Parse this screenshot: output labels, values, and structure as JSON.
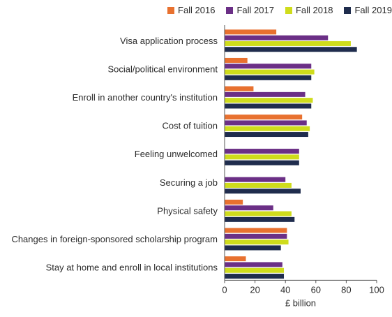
{
  "chart_data": {
    "type": "bar",
    "orientation": "horizontal",
    "categories": [
      "Visa application process",
      "Social/political environment",
      "Enroll in another country's institution",
      "Cost of tuition",
      "Feeling unwelcomed",
      "Securing a job",
      "Physical safety",
      "Changes in foreign-sponsored scholarship program",
      "Stay at home and enroll in local institutions"
    ],
    "series": [
      {
        "name": "Fall 2016",
        "color": "#e8712f",
        "values": [
          34,
          15,
          19,
          51,
          0,
          0,
          12,
          41,
          14
        ]
      },
      {
        "name": "Fall 2017",
        "color": "#6b2f86",
        "values": [
          68,
          57,
          53,
          54,
          49,
          40,
          32,
          41,
          38
        ]
      },
      {
        "name": "Fall 2018",
        "color": "#cfdc1c",
        "values": [
          83,
          59,
          58,
          56,
          49,
          44,
          44,
          42,
          39
        ]
      },
      {
        "name": "Fall 2019",
        "color": "#1f2c4d",
        "values": [
          87,
          57,
          57,
          55,
          49,
          50,
          46,
          37,
          39
        ]
      }
    ],
    "xlabel": "£ billion",
    "xlim": [
      0,
      100
    ],
    "xticks": [
      0,
      20,
      40,
      60,
      80,
      100
    ],
    "legend_position": "top",
    "grid": false
  }
}
